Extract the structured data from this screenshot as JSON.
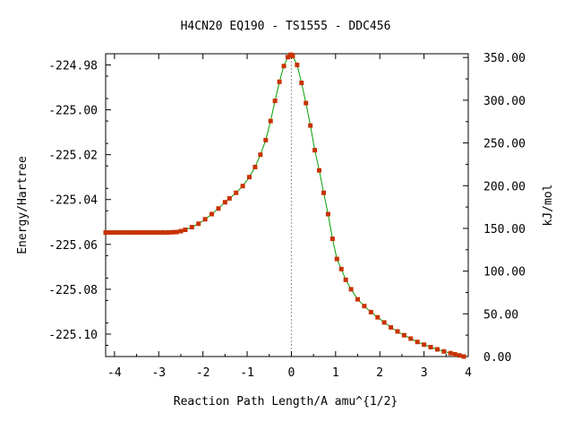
{
  "chart_data": {
    "type": "line",
    "title": "H4CN20   EQ190 - TS1555 - DDC456",
    "xlabel": "Reaction Path Length/A amu^{1/2}",
    "ylabel": "Energy/Hartree",
    "y2label": "kJ/mol",
    "xlim": [
      -4.2,
      4.0
    ],
    "ylim": [
      -225.11,
      -224.975
    ],
    "y2lim": [
      0,
      354.4
    ],
    "xticks": [
      "-4",
      "-3",
      "-2",
      "-1",
      "0",
      "1",
      "2",
      "3",
      "4"
    ],
    "yticks": [
      "-224.98",
      "-225.00",
      "-225.02",
      "-225.04",
      "-225.06",
      "-225.08",
      "-225.10"
    ],
    "y2ticks": [
      "0.00",
      "50.00",
      "100.00",
      "150.00",
      "200.00",
      "250.00",
      "300.00",
      "350.00"
    ],
    "reference_line_x": 0,
    "colors": {
      "line": "#00a000",
      "marker": "#c83200",
      "reference": "#999999"
    },
    "series": [
      {
        "x": [
          -4.2,
          -4.1,
          -4.0,
          -3.9,
          -3.8,
          -3.7,
          -3.6,
          -3.5,
          -3.4,
          -3.3,
          -3.2,
          -3.1,
          -3.0,
          -2.9,
          -2.8,
          -2.7,
          -2.6,
          -2.5,
          -2.4,
          -2.25,
          -2.1,
          -1.95,
          -1.8,
          -1.65,
          -1.5,
          -1.4,
          -1.25,
          -1.1,
          -0.95,
          -0.82,
          -0.7,
          -0.58,
          -0.47,
          -0.37,
          -0.27,
          -0.17,
          -0.08,
          -0.02,
          0.0,
          0.03,
          0.13,
          0.23,
          0.33,
          0.43,
          0.53,
          0.63,
          0.73,
          0.83,
          0.93,
          1.03,
          1.13,
          1.23,
          1.35,
          1.5,
          1.65,
          1.8,
          1.95,
          2.1,
          2.25,
          2.4,
          2.55,
          2.7,
          2.85,
          3.0,
          3.15,
          3.3,
          3.45,
          3.6,
          3.7,
          3.8,
          3.9
        ],
        "y": [
          -225.0547,
          -225.0547,
          -225.0547,
          -225.0547,
          -225.0547,
          -225.0547,
          -225.0547,
          -225.0547,
          -225.0547,
          -225.0547,
          -225.0547,
          -225.0547,
          -225.0547,
          -225.0547,
          -225.0547,
          -225.0546,
          -225.0545,
          -225.0541,
          -225.0535,
          -225.0523,
          -225.0508,
          -225.0488,
          -225.0465,
          -225.044,
          -225.0412,
          -225.0395,
          -225.037,
          -225.034,
          -225.03,
          -225.0255,
          -225.02,
          -225.0135,
          -225.005,
          -224.996,
          -224.9875,
          -224.9805,
          -224.9765,
          -224.9755,
          -224.9755,
          -224.976,
          -224.98,
          -224.988,
          -224.997,
          -225.007,
          -225.018,
          -225.027,
          -225.037,
          -225.0465,
          -225.0575,
          -225.0665,
          -225.071,
          -225.0758,
          -225.08,
          -225.0845,
          -225.0875,
          -225.0902,
          -225.0925,
          -225.0948,
          -225.097,
          -225.0988,
          -225.1005,
          -225.102,
          -225.1035,
          -225.1047,
          -225.1058,
          -225.1068,
          -225.1077,
          -225.1085,
          -225.109,
          -225.1095,
          -225.11
        ]
      }
    ]
  }
}
